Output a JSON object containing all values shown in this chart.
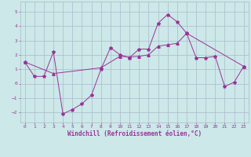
{
  "title": "",
  "xlabel": "Windchill (Refroidissement éolien,°C)",
  "ylabel": "",
  "bg_color": "#cce8e8",
  "grid_color": "#aabbcc",
  "line_color": "#993399",
  "xlim": [
    -0.5,
    23.5
  ],
  "ylim": [
    -2.7,
    5.7
  ],
  "xticks": [
    0,
    1,
    2,
    3,
    4,
    5,
    6,
    7,
    8,
    9,
    10,
    11,
    12,
    13,
    14,
    15,
    16,
    17,
    18,
    19,
    20,
    21,
    22,
    23
  ],
  "yticks": [
    -2,
    -1,
    0,
    1,
    2,
    3,
    4,
    5
  ],
  "series1_x": [
    0,
    1,
    2,
    3,
    4,
    5,
    6,
    7,
    8,
    9,
    10,
    11,
    12,
    13,
    14,
    15,
    16,
    17,
    18,
    19,
    20,
    21,
    22,
    23
  ],
  "series1_y": [
    1.5,
    0.5,
    0.5,
    2.2,
    -2.1,
    -1.8,
    -1.4,
    -0.8,
    1.0,
    2.5,
    2.0,
    1.8,
    2.4,
    2.4,
    4.2,
    4.8,
    4.3,
    3.5,
    1.8,
    1.8,
    1.9,
    -0.2,
    0.1,
    1.2
  ],
  "series2_x": [
    0,
    3,
    8,
    10,
    11,
    12,
    13,
    14,
    15,
    16,
    17,
    23
  ],
  "series2_y": [
    1.5,
    0.7,
    1.1,
    1.9,
    1.85,
    1.9,
    2.0,
    2.6,
    2.7,
    2.8,
    3.5,
    1.2
  ],
  "font_color": "#993399",
  "tick_fontsize": 4.5,
  "xlabel_fontsize": 5.5
}
